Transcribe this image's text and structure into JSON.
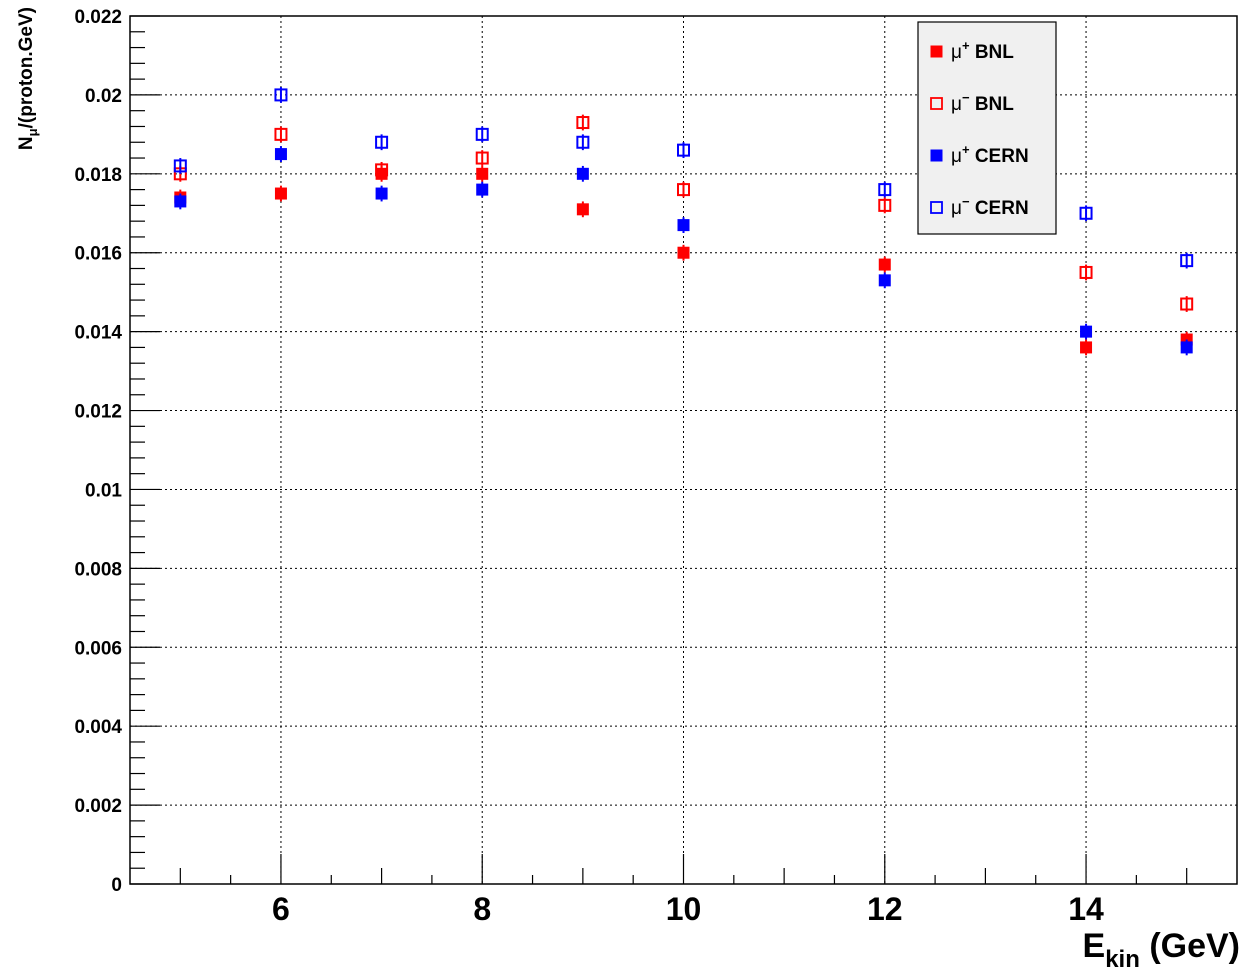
{
  "chart_data": {
    "type": "scatter",
    "title": "",
    "xlabel": {
      "main": "E",
      "sub": "kin",
      "suffix": " (GeV)"
    },
    "ylabel": {
      "main": "N",
      "sub": "μ",
      "suffix": "/(proton.GeV)"
    },
    "xlim": [
      4.5,
      15.5
    ],
    "ylim": [
      0,
      0.022
    ],
    "xticks": [
      6,
      8,
      10,
      12,
      14
    ],
    "xtick_labels": [
      "6",
      "8",
      "10",
      "12",
      "14"
    ],
    "yticks": [
      0,
      0.002,
      0.004,
      0.006,
      0.008,
      0.01,
      0.012,
      0.014,
      0.016,
      0.018,
      0.02,
      0.022
    ],
    "ytick_labels": [
      "0",
      "0.002",
      "0.004",
      "0.006",
      "0.008",
      "0.01",
      "0.012",
      "0.014",
      "0.016",
      "0.018",
      "0.02",
      "0.022"
    ],
    "grid": true,
    "legend_position": "top-right",
    "series": [
      {
        "name": "μ⁺ BNL",
        "base": "μ",
        "sup": "+",
        "tail": " BNL",
        "color": "#ff0000",
        "marker": "filled-square",
        "x": [
          5,
          6,
          7,
          8,
          9,
          10,
          12,
          14,
          15
        ],
        "y": [
          0.0174,
          0.0175,
          0.018,
          0.018,
          0.0171,
          0.016,
          0.0157,
          0.0136,
          0.0138
        ],
        "err": [
          0.0002,
          0.0002,
          0.0002,
          0.0002,
          0.0002,
          0.0002,
          0.0002,
          0.0002,
          0.0002
        ]
      },
      {
        "name": "μ⁻ BNL",
        "base": "μ",
        "sup": "−",
        "tail": " BNL",
        "color": "#ff0000",
        "marker": "open-square",
        "x": [
          5,
          6,
          7,
          8,
          9,
          10,
          12,
          14,
          15
        ],
        "y": [
          0.018,
          0.019,
          0.0181,
          0.0184,
          0.0193,
          0.0176,
          0.0172,
          0.0155,
          0.0147
        ],
        "err": [
          0.0002,
          0.0002,
          0.0002,
          0.0002,
          0.0002,
          0.0002,
          0.0002,
          0.0002,
          0.0002
        ]
      },
      {
        "name": "μ⁺ CERN",
        "base": "μ",
        "sup": "+",
        "tail": " CERN",
        "color": "#0000ff",
        "marker": "filled-square",
        "x": [
          5,
          6,
          7,
          8,
          9,
          10,
          12,
          14,
          15
        ],
        "y": [
          0.0173,
          0.0185,
          0.0175,
          0.0176,
          0.018,
          0.0167,
          0.0153,
          0.014,
          0.0136
        ],
        "err": [
          0.0002,
          0.0002,
          0.0002,
          0.0002,
          0.0002,
          0.0002,
          0.0002,
          0.0002,
          0.0002
        ]
      },
      {
        "name": "μ⁻ CERN",
        "base": "μ",
        "sup": "−",
        "tail": " CERN",
        "color": "#0000ff",
        "marker": "open-square",
        "x": [
          5,
          6,
          7,
          8,
          9,
          10,
          12,
          14,
          15
        ],
        "y": [
          0.0182,
          0.02,
          0.0188,
          0.019,
          0.0188,
          0.0186,
          0.0176,
          0.017,
          0.0158
        ],
        "err": [
          0.0002,
          0.0002,
          0.0002,
          0.0002,
          0.0002,
          0.0002,
          0.0002,
          0.0002,
          0.0002
        ]
      }
    ]
  }
}
